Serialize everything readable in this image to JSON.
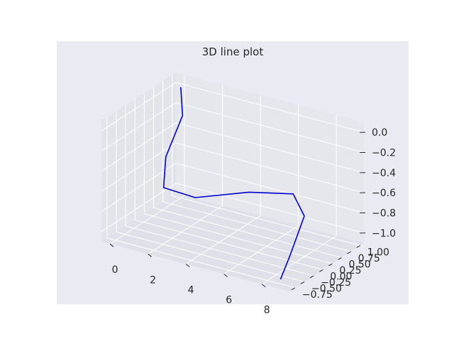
{
  "chart_data": {
    "type": "line",
    "title": "3D line plot",
    "xlabel": "",
    "ylabel": "",
    "zlabel": "",
    "grid": true,
    "x_ticks": [
      "0",
      "2",
      "4",
      "6",
      "8"
    ],
    "y_ticks": [
      "−0.75",
      "−0.50",
      "−0.25",
      "0.00",
      "0.25",
      "0.50",
      "0.75",
      "1.00"
    ],
    "z_ticks": [
      "−1.0",
      "−0.8",
      "−0.6",
      "−0.4",
      "−0.2",
      "0.0"
    ],
    "xlim": [
      -0.45,
      9.45
    ],
    "ylim": [
      -0.9,
      1.1
    ],
    "zlim": [
      -1.1,
      0.1
    ],
    "series": [
      {
        "color": "#0000cc",
        "x": [
          0,
          1,
          2,
          3,
          4,
          5,
          6,
          7,
          8,
          9
        ],
        "y": [
          1.0,
          0.54,
          -0.42,
          -0.99,
          -0.65,
          0.28,
          0.96,
          0.75,
          -0.15,
          -0.91
        ],
        "z": [
          0.0,
          -0.12,
          -0.25,
          -0.37,
          -0.5,
          -0.62,
          -0.75,
          -0.87,
          -1.0,
          -1.0
        ]
      }
    ],
    "colors": {
      "axes_background": "#eaeaf2",
      "pane_left": "#e3e3ea",
      "pane_back": "#e6e6ed",
      "pane_floor": "#e0e0e8",
      "grid": "#ffffff",
      "text": "#262626"
    }
  }
}
